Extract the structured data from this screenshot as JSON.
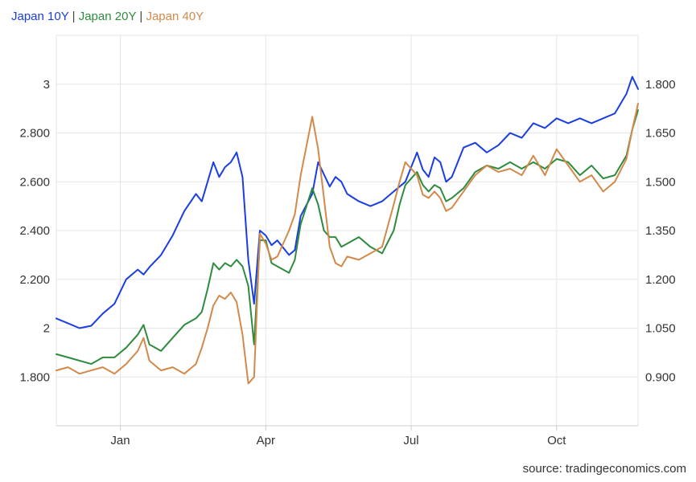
{
  "legend": [
    {
      "label": "Japan 10Y",
      "color": "#1a3ee0"
    },
    {
      "separator": "|"
    },
    {
      "label": "Japan 20Y",
      "color": "#2e8b3e"
    },
    {
      "separator": "|"
    },
    {
      "label": "Japan 40Y",
      "color": "#d2894a"
    }
  ],
  "source": "source: tradingeconomics.com",
  "chart_data": {
    "type": "line",
    "grid": true,
    "legend_position": "top-left",
    "x_ticks": [
      "Jan",
      "Apr",
      "Jul",
      "Oct"
    ],
    "x_range": [
      0,
      1
    ],
    "x_tick_positions": [
      0.11,
      0.36,
      0.61,
      0.86
    ],
    "left_axis": {
      "ticks": [
        "1.800",
        "2",
        "2.200",
        "2.400",
        "2.600",
        "2.800",
        "3"
      ],
      "range": [
        1.6,
        3.2
      ]
    },
    "right_axis": {
      "ticks": [
        "0.900",
        "1.050",
        "1.200",
        "1.350",
        "1.500",
        "1.650",
        "1.800"
      ],
      "range": [
        0.75,
        1.95
      ]
    },
    "series": [
      {
        "name": "Japan 10Y",
        "color": "#1a3ee0",
        "axis": "left",
        "x": [
          0.0,
          0.02,
          0.04,
          0.06,
          0.08,
          0.1,
          0.12,
          0.14,
          0.15,
          0.16,
          0.18,
          0.2,
          0.22,
          0.24,
          0.25,
          0.26,
          0.27,
          0.28,
          0.29,
          0.3,
          0.31,
          0.32,
          0.33,
          0.34,
          0.35,
          0.36,
          0.37,
          0.38,
          0.4,
          0.41,
          0.42,
          0.44,
          0.45,
          0.46,
          0.47,
          0.48,
          0.49,
          0.5,
          0.52,
          0.54,
          0.56,
          0.58,
          0.59,
          0.6,
          0.62,
          0.63,
          0.64,
          0.65,
          0.66,
          0.67,
          0.68,
          0.7,
          0.72,
          0.74,
          0.76,
          0.78,
          0.8,
          0.82,
          0.84,
          0.86,
          0.88,
          0.9,
          0.92,
          0.94,
          0.96,
          0.98,
          0.99,
          1.0
        ],
        "values": [
          2.04,
          2.02,
          2.0,
          2.01,
          2.06,
          2.1,
          2.2,
          2.24,
          2.22,
          2.25,
          2.3,
          2.38,
          2.48,
          2.55,
          2.52,
          2.6,
          2.68,
          2.62,
          2.66,
          2.68,
          2.72,
          2.62,
          2.28,
          2.1,
          2.4,
          2.38,
          2.34,
          2.36,
          2.3,
          2.32,
          2.46,
          2.55,
          2.68,
          2.63,
          2.58,
          2.62,
          2.6,
          2.55,
          2.52,
          2.5,
          2.52,
          2.56,
          2.58,
          2.6,
          2.72,
          2.65,
          2.62,
          2.7,
          2.68,
          2.6,
          2.62,
          2.74,
          2.76,
          2.72,
          2.75,
          2.8,
          2.78,
          2.84,
          2.82,
          2.86,
          2.84,
          2.86,
          2.84,
          2.86,
          2.88,
          2.96,
          3.03,
          2.98
        ]
      },
      {
        "name": "Japan 20Y",
        "color": "#2e8b3e",
        "axis": "right",
        "x": [
          0.0,
          0.02,
          0.04,
          0.06,
          0.08,
          0.1,
          0.12,
          0.14,
          0.15,
          0.16,
          0.18,
          0.2,
          0.22,
          0.24,
          0.25,
          0.26,
          0.27,
          0.28,
          0.29,
          0.3,
          0.31,
          0.32,
          0.33,
          0.34,
          0.35,
          0.36,
          0.37,
          0.38,
          0.4,
          0.41,
          0.42,
          0.44,
          0.45,
          0.46,
          0.47,
          0.48,
          0.49,
          0.5,
          0.52,
          0.54,
          0.56,
          0.58,
          0.59,
          0.6,
          0.62,
          0.63,
          0.64,
          0.65,
          0.66,
          0.67,
          0.68,
          0.7,
          0.72,
          0.74,
          0.76,
          0.78,
          0.8,
          0.82,
          0.84,
          0.86,
          0.88,
          0.9,
          0.92,
          0.94,
          0.96,
          0.98,
          0.99,
          1.0
        ],
        "values": [
          0.97,
          0.96,
          0.95,
          0.94,
          0.96,
          0.96,
          0.99,
          1.03,
          1.06,
          1.0,
          0.98,
          1.02,
          1.06,
          1.08,
          1.1,
          1.17,
          1.25,
          1.23,
          1.25,
          1.24,
          1.26,
          1.24,
          1.18,
          1.0,
          1.32,
          1.32,
          1.25,
          1.24,
          1.22,
          1.26,
          1.37,
          1.48,
          1.43,
          1.35,
          1.33,
          1.33,
          1.3,
          1.31,
          1.33,
          1.3,
          1.28,
          1.35,
          1.43,
          1.49,
          1.53,
          1.49,
          1.47,
          1.49,
          1.48,
          1.44,
          1.45,
          1.48,
          1.53,
          1.55,
          1.54,
          1.56,
          1.54,
          1.56,
          1.54,
          1.57,
          1.56,
          1.52,
          1.55,
          1.51,
          1.52,
          1.58,
          1.66,
          1.72
        ]
      },
      {
        "name": "Japan 40Y",
        "color": "#d2894a",
        "axis": "right",
        "x": [
          0.0,
          0.02,
          0.04,
          0.06,
          0.08,
          0.1,
          0.12,
          0.14,
          0.15,
          0.16,
          0.18,
          0.2,
          0.22,
          0.24,
          0.25,
          0.26,
          0.27,
          0.28,
          0.29,
          0.3,
          0.31,
          0.32,
          0.33,
          0.34,
          0.35,
          0.36,
          0.37,
          0.38,
          0.4,
          0.41,
          0.42,
          0.44,
          0.45,
          0.46,
          0.47,
          0.48,
          0.49,
          0.5,
          0.52,
          0.54,
          0.56,
          0.58,
          0.59,
          0.6,
          0.62,
          0.63,
          0.64,
          0.65,
          0.66,
          0.67,
          0.68,
          0.7,
          0.72,
          0.74,
          0.76,
          0.78,
          0.8,
          0.82,
          0.84,
          0.86,
          0.88,
          0.9,
          0.92,
          0.94,
          0.96,
          0.98,
          0.99,
          1.0
        ],
        "values": [
          0.92,
          0.93,
          0.91,
          0.92,
          0.93,
          0.91,
          0.94,
          0.98,
          1.02,
          0.95,
          0.92,
          0.93,
          0.91,
          0.94,
          0.99,
          1.05,
          1.12,
          1.15,
          1.14,
          1.16,
          1.13,
          1.03,
          0.88,
          0.9,
          1.34,
          1.31,
          1.26,
          1.27,
          1.35,
          1.4,
          1.52,
          1.7,
          1.6,
          1.45,
          1.3,
          1.25,
          1.24,
          1.27,
          1.26,
          1.28,
          1.3,
          1.43,
          1.5,
          1.56,
          1.52,
          1.46,
          1.45,
          1.47,
          1.45,
          1.41,
          1.42,
          1.47,
          1.52,
          1.55,
          1.53,
          1.54,
          1.52,
          1.58,
          1.52,
          1.6,
          1.55,
          1.5,
          1.52,
          1.47,
          1.5,
          1.57,
          1.66,
          1.74
        ]
      }
    ]
  }
}
